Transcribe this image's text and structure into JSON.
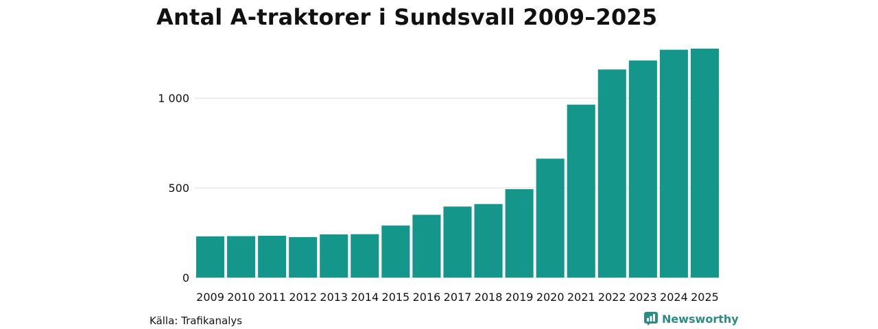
{
  "chart_data": {
    "type": "bar",
    "title": "Antal A-traktorer i Sundsvall 2009–2025",
    "categories": [
      "2009",
      "2010",
      "2011",
      "2012",
      "2013",
      "2014",
      "2015",
      "2016",
      "2017",
      "2018",
      "2019",
      "2020",
      "2021",
      "2022",
      "2023",
      "2024",
      "2025"
    ],
    "values": [
      230,
      231,
      233,
      226,
      241,
      242,
      290,
      350,
      396,
      410,
      493,
      663,
      964,
      1160,
      1210,
      1270,
      1276
    ],
    "ylim": [
      0,
      1276
    ],
    "yticks": [
      0,
      500,
      1000
    ],
    "ytick_labels": [
      "0",
      "500",
      "1 000"
    ],
    "xlabel": "",
    "ylabel": "",
    "grid": true,
    "bar_color": "#14968a",
    "grid_color": "#dddddd"
  },
  "footer": {
    "source": "Källa: Trafikanalys",
    "brand": "Newsworthy",
    "brand_color": "#2a8c82",
    "brand_icon": "newsworthy-logo-icon"
  }
}
